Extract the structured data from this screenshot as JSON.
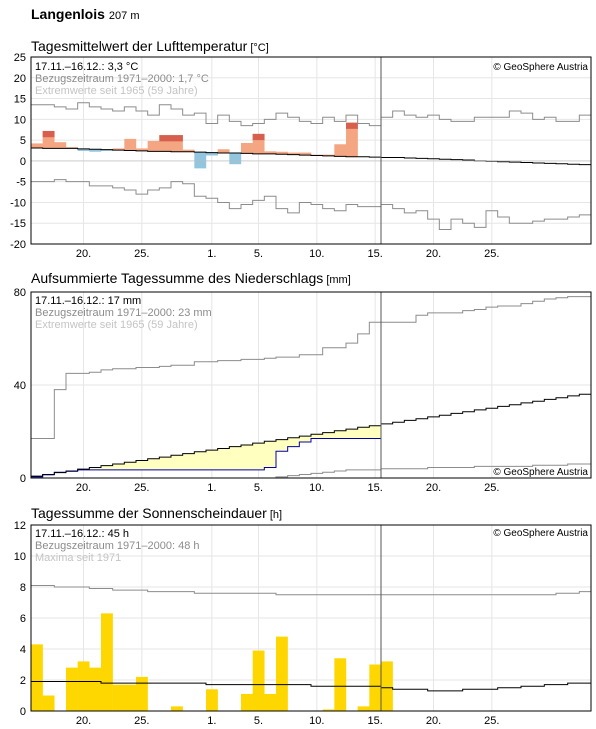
{
  "station": {
    "name": "Langenlois",
    "elevation": "207 m"
  },
  "copyright": "© GeoSphere Austria",
  "x_axis": {
    "tick_labels": [
      "20.",
      "25.",
      "1.",
      "5.",
      "10.",
      "15.",
      "20.",
      "25."
    ],
    "tick_days": [
      4,
      9,
      15,
      19,
      24,
      29,
      34,
      39
    ],
    "start_date": "17.11.",
    "current_day_index": 30
  },
  "chart_data": [
    {
      "type": "bar",
      "title": "Tagesmittelwert der Lufttemperatur",
      "unit": "[°C]",
      "info": [
        "17.11.–16.12.: 3,3 °C",
        "Bezugszeitraum 1971–2000: 1,7 °C",
        "Extremwerte seit 1965 (59 Jahre)"
      ],
      "ylim": [
        -20,
        25
      ],
      "yticks": [
        25,
        20,
        15,
        10,
        5,
        0,
        -5,
        -10,
        -15,
        -20
      ],
      "colors": {
        "warm": "#f4a582",
        "warm_strong": "#d6604d",
        "cold": "#92c5de"
      },
      "values": [
        4.2,
        7.2,
        4.5,
        3.3,
        2.4,
        2.2,
        2.4,
        3.0,
        5.3,
        3.0,
        4.8,
        6.2,
        6.2,
        2.7,
        -1.8,
        1.3,
        2.8,
        -0.8,
        4.3,
        6.5,
        2.3,
        2.2,
        2.0,
        2.0,
        1.5,
        1.5,
        4.0,
        9.2
      ],
      "reference": [
        3.1,
        3.0,
        3.0,
        3.0,
        2.9,
        2.8,
        2.7,
        2.6,
        2.5,
        2.4,
        2.3,
        2.3,
        2.2,
        2.2,
        2.1,
        2.0,
        1.9,
        1.9,
        1.8,
        1.7,
        1.7,
        1.6,
        1.5,
        1.4,
        1.3,
        1.2,
        1.1,
        1.0,
        1.0,
        0.9,
        0.8,
        0.8,
        0.7,
        0.6,
        0.5,
        0.4,
        0.3,
        0.2,
        0.0,
        -0.1,
        -0.2,
        -0.3,
        -0.4,
        -0.5,
        -0.6,
        -0.7,
        -0.8,
        -0.9
      ],
      "max_extreme": [
        13.5,
        13.5,
        13.0,
        12.5,
        14.0,
        13.0,
        12.5,
        12.0,
        13.0,
        12.0,
        11.0,
        13.5,
        12.5,
        11.0,
        11.5,
        9.0,
        11.0,
        9.5,
        8.5,
        9.0,
        10.0,
        11.5,
        10.5,
        9.5,
        9.0,
        10.5,
        9.5,
        11.0,
        9.0,
        8.5,
        10.5,
        12.0,
        11.0,
        10.5,
        11.0,
        10.0,
        9.5,
        9.5,
        10.5,
        10.5,
        10.5,
        12.0,
        11.5,
        10.0,
        10.5,
        9.5,
        9.5,
        11.0
      ],
      "min_extreme": [
        -5.0,
        -5.0,
        -4.5,
        -5.0,
        -5.0,
        -6.0,
        -6.0,
        -6.5,
        -7.0,
        -8.0,
        -7.0,
        -6.5,
        -5.0,
        -5.5,
        -8.5,
        -9.0,
        -10.0,
        -11.5,
        -10.5,
        -9.5,
        -8.5,
        -11.5,
        -12.5,
        -10.0,
        -10.5,
        -11.5,
        -12.0,
        -10.5,
        -11.0,
        -11.0,
        -10.5,
        -11.5,
        -12.5,
        -12.0,
        -14.0,
        -16.5,
        -14.0,
        -15.0,
        -16.0,
        -12.0,
        -13.5,
        -15.0,
        -15.0,
        -14.5,
        -14.0,
        -14.0,
        -13.5,
        -13.0
      ]
    },
    {
      "type": "area",
      "title": "Aufsummierte Tagessumme des Niederschlags",
      "unit": "[mm]",
      "info": [
        "17.11.–16.12.: 17 mm",
        "Bezugszeitraum 1971–2000: 23 mm",
        "Extremwerte seit 1965 (59 Jahre)"
      ],
      "ylim": [
        0,
        80
      ],
      "yticks": [
        80,
        40,
        0
      ],
      "colors": {
        "surplus": "#0000ff",
        "deficit": "#ffffc0"
      },
      "cumulative": [
        0.5,
        1.5,
        2.5,
        3.0,
        3.5,
        3.5,
        3.5,
        3.5,
        3.5,
        3.5,
        3.5,
        3.5,
        3.5,
        3.5,
        3.5,
        3.5,
        3.5,
        3.5,
        3.5,
        3.5,
        4.5,
        11.5,
        13.5,
        15.5,
        17.0,
        17.0,
        17.0,
        17.0,
        17.0,
        17.0
      ],
      "reference": [
        0.8,
        1.5,
        2.3,
        3.0,
        3.8,
        4.5,
        5.3,
        6.0,
        6.8,
        7.5,
        8.3,
        9.0,
        9.8,
        10.5,
        11.3,
        12.0,
        12.7,
        13.5,
        14.2,
        15.0,
        15.8,
        16.5,
        17.3,
        18.0,
        18.8,
        19.5,
        20.3,
        21.0,
        21.8,
        22.5,
        23.3,
        24.0,
        24.8,
        25.5,
        26.3,
        27.0,
        27.8,
        28.5,
        29.3,
        30.0,
        30.8,
        31.5,
        32.3,
        33.0,
        33.8,
        34.5,
        35.3,
        36.0
      ],
      "max_extreme": [
        17.0,
        17.0,
        38.0,
        45.0,
        45.0,
        45.5,
        46.5,
        47.0,
        47.0,
        47.5,
        47.5,
        48.0,
        48.5,
        48.5,
        50.0,
        50.0,
        50.5,
        50.5,
        51.0,
        51.0,
        51.5,
        52.0,
        52.0,
        53.0,
        53.0,
        56.0,
        56.0,
        58.0,
        62.0,
        67.0,
        67.0,
        67.0,
        67.0,
        70.0,
        71.0,
        71.0,
        71.0,
        72.0,
        72.5,
        73.5,
        74.0,
        74.0,
        75.0,
        76.0,
        77.0,
        77.5,
        78.0,
        78.0
      ],
      "min_extreme": [
        0.0,
        0.0,
        0.0,
        0.0,
        0.0,
        0.0,
        0.0,
        0.0,
        0.0,
        0.0,
        0.0,
        0.0,
        0.0,
        0.0,
        0.0,
        0.0,
        0.0,
        0.0,
        0.0,
        0.0,
        0.0,
        0.5,
        1.0,
        1.5,
        2.0,
        2.5,
        3.0,
        3.5,
        3.5,
        3.5,
        4.0,
        4.0,
        4.0,
        4.0,
        4.5,
        4.5,
        4.5,
        4.5,
        5.0,
        5.0,
        5.0,
        5.0,
        5.0,
        5.5,
        5.5,
        5.5,
        6.0,
        6.0
      ]
    },
    {
      "type": "bar",
      "title": "Tagessumme der Sonnenscheindauer",
      "unit": "[h]",
      "info": [
        "17.11.–16.12.: 45 h",
        "Bezugszeitraum 1971–2000: 48 h",
        "Maxima seit 1971"
      ],
      "ylim": [
        0,
        12
      ],
      "yticks": [
        12,
        10,
        8,
        6,
        4,
        2,
        0
      ],
      "colors": {
        "bars": "#ffd700"
      },
      "values": [
        4.3,
        1.0,
        0.0,
        2.8,
        3.2,
        2.8,
        6.3,
        1.7,
        1.7,
        2.2,
        0.0,
        0.0,
        0.3,
        0.0,
        0.0,
        1.4,
        0.0,
        0.0,
        1.1,
        3.9,
        1.1,
        4.8,
        0.0,
        0.0,
        0.0,
        0.1,
        3.4,
        0.0,
        0.3,
        3.0,
        3.2
      ],
      "reference": [
        1.9,
        1.9,
        1.9,
        1.9,
        1.9,
        1.9,
        1.8,
        1.8,
        1.8,
        1.8,
        1.8,
        1.8,
        1.8,
        1.8,
        1.8,
        1.7,
        1.7,
        1.7,
        1.7,
        1.7,
        1.7,
        1.7,
        1.7,
        1.7,
        1.6,
        1.6,
        1.6,
        1.6,
        1.6,
        1.6,
        1.5,
        1.4,
        1.4,
        1.4,
        1.3,
        1.3,
        1.3,
        1.4,
        1.4,
        1.4,
        1.5,
        1.5,
        1.6,
        1.6,
        1.7,
        1.7,
        1.8,
        1.8
      ],
      "max_extreme": [
        8.1,
        8.1,
        8.0,
        8.0,
        8.0,
        7.9,
        7.9,
        7.8,
        7.8,
        7.8,
        7.7,
        7.7,
        7.7,
        7.7,
        7.6,
        7.6,
        7.6,
        7.6,
        7.6,
        7.6,
        7.6,
        7.5,
        7.5,
        7.5,
        7.5,
        7.5,
        7.5,
        7.5,
        7.5,
        7.5,
        7.5,
        7.5,
        7.5,
        7.5,
        7.5,
        7.5,
        7.5,
        7.5,
        7.5,
        7.5,
        7.5,
        7.5,
        7.5,
        7.5,
        7.5,
        7.6,
        7.6,
        7.7
      ]
    }
  ]
}
